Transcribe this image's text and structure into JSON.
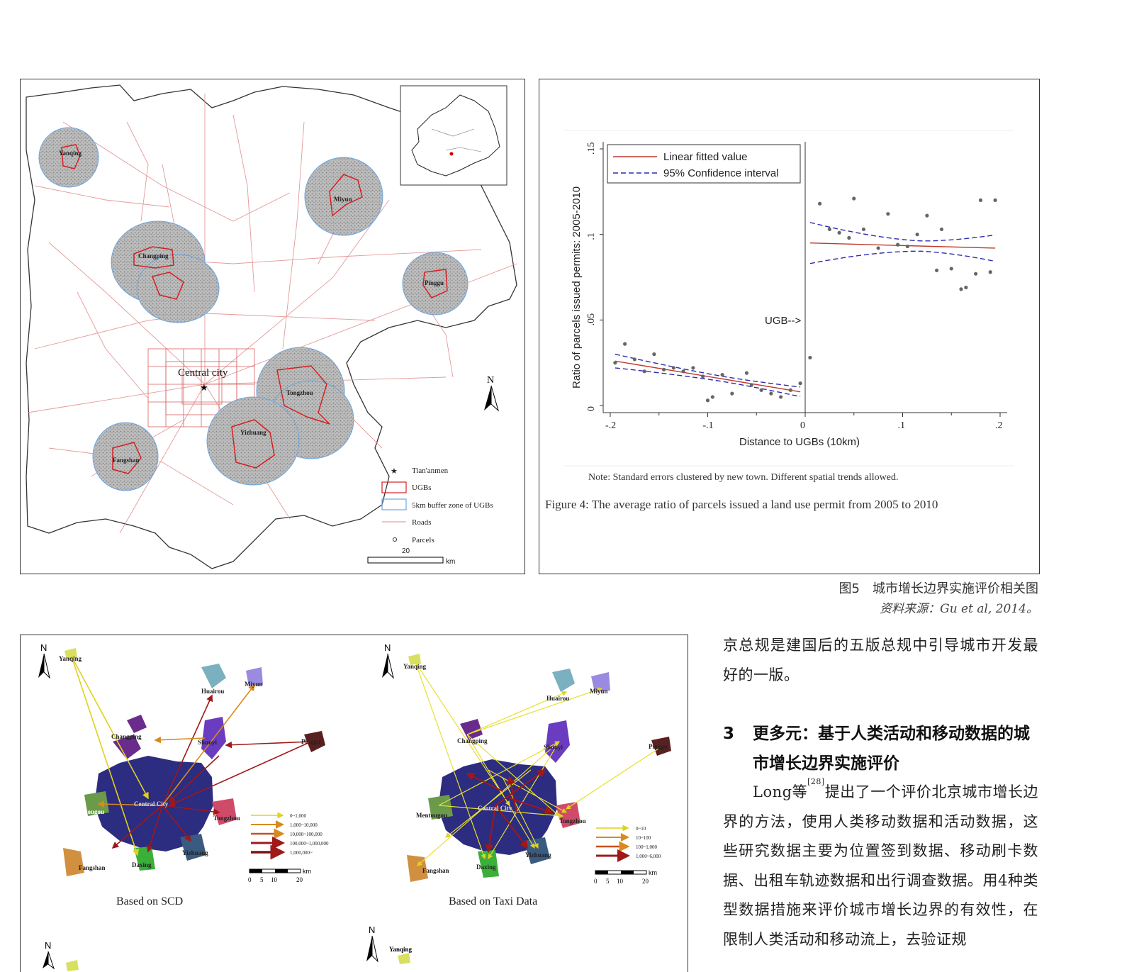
{
  "map_panel": {
    "labels": {
      "yanqing": "Yanqing",
      "miyun": "Miyun",
      "changping": "Changping",
      "pinggu": "Pinggu",
      "central_city": "Central city",
      "tongzhou": "Tongzhou",
      "yizhuang": "Yizhuang",
      "fangshan": "Fangshan",
      "north": "N"
    },
    "legend": {
      "tiananmen": "Tian'anmen",
      "ugbs": "UGBs",
      "buffer": "5km buffer zone of UGBs",
      "roads": "Roads",
      "parcels": "Parcels"
    },
    "scale": {
      "value": "20",
      "unit": "km"
    },
    "colors": {
      "road": "#e08a8a",
      "ugb": "#d62020",
      "buffer": "#6aa6e0",
      "parcel": "#9a9a9a"
    }
  },
  "chart_panel": {
    "caption_figure": "Figure 4: The average ratio of parcels issued a land use permit from 2005 to 2010",
    "note": "Note: Standard errors clustered by new town. Different spatial trends allowed.",
    "ugb_marker": "UGB-->",
    "chart_data": {
      "type": "scatter",
      "xlabel": "Distance to UGBs (10km)",
      "ylabel": "Ratio of parcels issued permits: 2005-2010",
      "xlim": [
        -0.2,
        0.2
      ],
      "ylim": [
        0,
        0.15
      ],
      "xticks": [
        "-.2",
        "-.1",
        "0",
        ".1",
        ".2"
      ],
      "yticks": [
        "0",
        ".05",
        ".1",
        ".15"
      ],
      "legend": [
        "Linear fitted value",
        "95% Confidence interval"
      ],
      "legend_position": "top-left",
      "series": [
        {
          "name": "points",
          "x": [
            -0.195,
            -0.185,
            -0.175,
            -0.165,
            -0.155,
            -0.145,
            -0.135,
            -0.125,
            -0.115,
            -0.105,
            -0.1,
            -0.095,
            -0.085,
            -0.075,
            -0.06,
            -0.055,
            -0.045,
            -0.035,
            -0.025,
            -0.015,
            -0.005,
            0.005,
            0.015,
            0.025,
            0.035,
            0.045,
            0.05,
            0.06,
            0.075,
            0.085,
            0.095,
            0.105,
            0.115,
            0.125,
            0.135,
            0.14,
            0.15,
            0.16,
            0.165,
            0.175,
            0.18,
            0.19,
            0.195
          ],
          "y": [
            0.025,
            0.036,
            0.027,
            0.02,
            0.03,
            0.021,
            0.022,
            0.02,
            0.022,
            0.017,
            0.003,
            0.005,
            0.018,
            0.007,
            0.019,
            0.012,
            0.009,
            0.007,
            0.005,
            0.009,
            0.013,
            0.028,
            0.118,
            0.103,
            0.101,
            0.098,
            0.121,
            0.103,
            0.092,
            0.112,
            0.094,
            0.093,
            0.1,
            0.111,
            0.079,
            0.103,
            0.08,
            0.068,
            0.069,
            0.077,
            0.12,
            0.078,
            0.12
          ]
        },
        {
          "name": "Linear fitted value",
          "x": [
            -0.195,
            -0.005,
            0.005,
            0.195
          ],
          "y": [
            0.026,
            0.008,
            0.095,
            0.092
          ]
        }
      ],
      "colors": {
        "fit": "#c0392b",
        "ci": "#2c2cb0",
        "points": "#666666"
      }
    }
  },
  "figure_caption": "图5　城市增长边界实施评价相关图",
  "figure_source": "资料来源：Gu et al, 2014。",
  "flow_panel": {
    "left_title": "Based on SCD",
    "right_title": "Based on Taxi Data",
    "places": {
      "yanqing": "Yanqing",
      "huairou": "Huairou",
      "miyun": "Miyun",
      "changping": "Changping",
      "shunyi": "Shunyi",
      "pinggu": "Pinggu",
      "mentougou": "Mentougou",
      "central_city": "Central City",
      "central_city_2": "Central City",
      "tongzhou": "Tongzhou",
      "yizhuang": "Yizhuang",
      "fangshan": "Fangshan",
      "daxing": "Daxing"
    },
    "north": "N",
    "left_legend": [
      "0~1,000",
      "1,000~10,000",
      "10,000~100,000",
      "100,000~1,000,000",
      "1,000,000~"
    ],
    "right_legend": [
      "0~10",
      "10~100",
      "100~1,000",
      "1,000~6,000"
    ],
    "scale_ticks": [
      "0",
      "5",
      "10",
      "20"
    ],
    "scale_unit": "km",
    "bottom_label": "Yanqing"
  },
  "body": {
    "para1": "京总规是建国后的五版总规中引导城市开发最好的一版。",
    "section_number": "3",
    "section_title": "更多元：基于人类活动和移动数据的城市增长边界实施评价",
    "para2_author": "Long等",
    "para2_ref": "[28]",
    "para2_rest": "提出了一个评价北京城市增长边界的方法，使用人类移动数据和活动数据，这些研究数据主要为位置签到数据、移动刷卡数据、出租车轨迹数据和出行调查数据。用4种类型数据措施来评价城市增长边界的有效性，在限制人类活动和移动流上，去验证规"
  }
}
